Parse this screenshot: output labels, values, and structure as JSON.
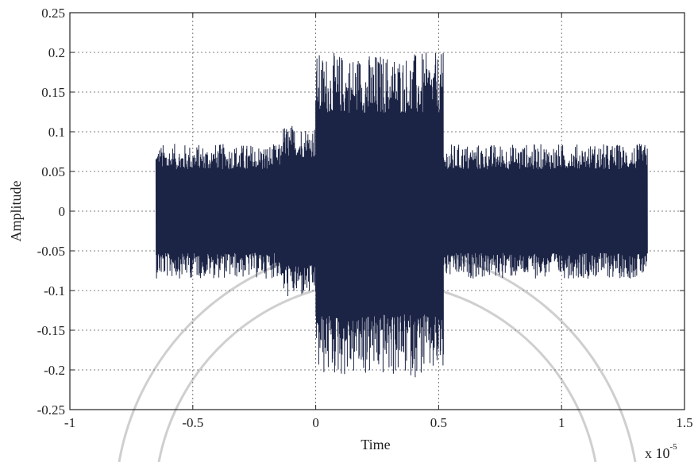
{
  "chart_data": {
    "type": "line",
    "title": "",
    "xlabel": "Time",
    "ylabel": "Amplitude",
    "x_multiplier": "x 10",
    "x_multiplier_exponent": "-5",
    "xlim": [
      -1,
      1.5
    ],
    "ylim": [
      -0.25,
      0.25
    ],
    "x_ticks": [
      -1,
      -0.5,
      0,
      0.5,
      1,
      1.5
    ],
    "x_tick_labels": [
      "-1",
      "-0.5",
      "0",
      "0.5",
      "1",
      "1.5"
    ],
    "y_ticks": [
      0.25,
      0.2,
      0.15,
      0.1,
      0.05,
      0,
      -0.05,
      -0.1,
      -0.15,
      -0.2,
      -0.25
    ],
    "y_tick_labels": [
      "0.25",
      "0.2",
      "0.15",
      "0.1",
      "0.05",
      "0",
      "-0.05",
      "-0.1",
      "-0.15",
      "-0.2",
      "-0.25"
    ],
    "grid": true,
    "series_color": "#1c2446",
    "series": [
      {
        "segments": [
          {
            "x_start": -0.65,
            "x_end": -0.14,
            "envelope_min": -0.085,
            "envelope_max": 0.085
          },
          {
            "x_start": -0.14,
            "x_end": 0.0,
            "envelope_min": -0.11,
            "envelope_max": 0.11
          },
          {
            "x_start": 0.0,
            "x_end": 0.52,
            "envelope_min": -0.21,
            "envelope_max": 0.2
          },
          {
            "x_start": 0.52,
            "x_end": 1.35,
            "envelope_min": -0.085,
            "envelope_max": 0.085
          }
        ]
      }
    ]
  }
}
